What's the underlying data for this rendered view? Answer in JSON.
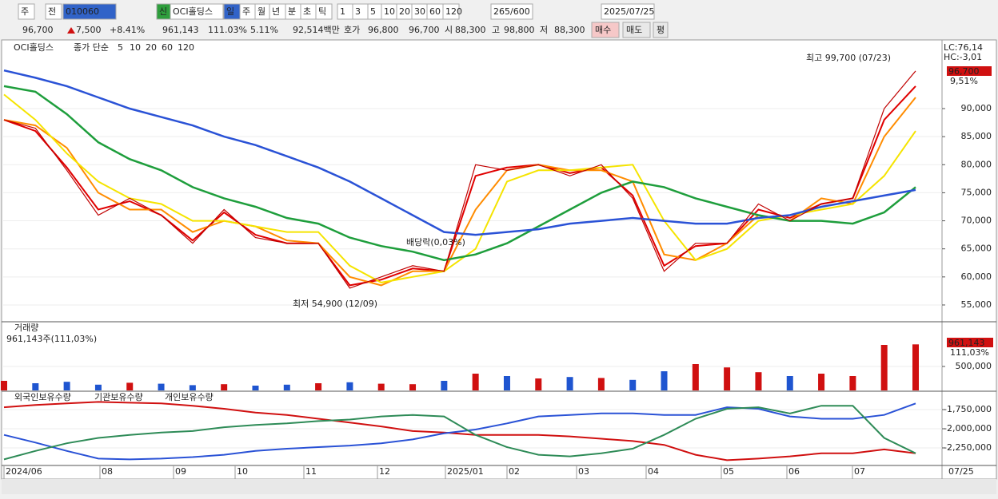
{
  "toolbar": {
    "items": [
      "주",
      "전",
      "010060",
      "신",
      "OCI홀딩스",
      "일",
      "주",
      "월",
      "년",
      "분",
      "초",
      "틱",
      "1",
      "3",
      "5",
      "10",
      "20",
      "30",
      "60",
      "120",
      "265/600",
      "2025/07/25"
    ]
  },
  "info_bar": {
    "items": [
      "96,700",
      "7,500",
      "+8.41%",
      "961,143",
      "111.03%",
      "5.11%",
      "92,514백만",
      "호가",
      "96,800",
      "96,700",
      "시",
      "88,300",
      "고",
      "98,800",
      "저",
      "88,300",
      "매수",
      "매도",
      "평"
    ]
  },
  "x_axis": {
    "labels": [
      "2024/06",
      "08",
      "09",
      "10",
      "11",
      "12",
      "2025/01",
      "02",
      "03",
      "04",
      "05",
      "06",
      "07"
    ],
    "end_label": "07/25"
  },
  "chart_data": [
    {
      "type": "line",
      "title": "OCI홀딩스",
      "legend_label": "종가 단순",
      "values": [
        88000,
        86500,
        79000,
        71000,
        74000,
        71000,
        66000,
        72000,
        67000,
        66000,
        66000,
        58000,
        60000,
        62000,
        61000,
        80000,
        79000,
        80000,
        78000,
        80000,
        74000,
        61000,
        66000,
        66000,
        73000,
        70000,
        73000,
        74000,
        90000,
        96700
      ],
      "color": "#c00000",
      "series": [
        {
          "name": "5",
          "color": "#e00000",
          "values": [
            88000,
            86000,
            79500,
            72000,
            73500,
            71000,
            66500,
            71500,
            67500,
            66000,
            66000,
            58500,
            59500,
            61500,
            61000,
            78000,
            79500,
            80000,
            78500,
            79500,
            74500,
            62000,
            65500,
            66000,
            72000,
            70500,
            73000,
            74000,
            88000,
            94000
          ]
        },
        {
          "name": "10",
          "color": "#ff8c00",
          "values": [
            88000,
            87000,
            83000,
            75000,
            72000,
            72000,
            68000,
            70000,
            69000,
            66500,
            66000,
            60000,
            58500,
            61000,
            61000,
            72000,
            79000,
            80000,
            79000,
            79000,
            77000,
            64000,
            63000,
            66000,
            71000,
            70000,
            74000,
            73000,
            85000,
            92000
          ]
        },
        {
          "name": "20",
          "color": "#f5e400",
          "values": [
            92500,
            88000,
            82000,
            77000,
            74000,
            73000,
            70000,
            70000,
            69000,
            68000,
            68000,
            62000,
            59000,
            60000,
            61000,
            65000,
            77000,
            79000,
            79000,
            79500,
            80000,
            70000,
            63000,
            65000,
            70000,
            71000,
            72000,
            73000,
            78000,
            86000
          ]
        },
        {
          "name": "60",
          "color": "#1e9e3c",
          "values": [
            94000,
            93000,
            89000,
            84000,
            81000,
            79000,
            76000,
            74000,
            72500,
            70500,
            69500,
            67000,
            65500,
            64500,
            63000,
            64000,
            66000,
            69000,
            72000,
            75000,
            77000,
            76000,
            74000,
            72500,
            71000,
            70000,
            70000,
            69500,
            71500,
            76000
          ]
        },
        {
          "name": "120",
          "color": "#2a52d6",
          "values": [
            96800,
            95500,
            94000,
            92000,
            90000,
            88500,
            87000,
            85000,
            83500,
            81500,
            79500,
            77000,
            74000,
            71000,
            68000,
            67500,
            68000,
            68500,
            69500,
            70000,
            70500,
            70000,
            69500,
            69500,
            70500,
            71000,
            72500,
            73500,
            74500,
            75500
          ]
        }
      ],
      "ylim": [
        52150,
        99820
      ],
      "yticks": [
        {
          "value": 55000,
          "label": "55,000"
        },
        {
          "value": 60000,
          "label": "60,000"
        },
        {
          "value": 65000,
          "label": "65,000"
        },
        {
          "value": 70000,
          "label": "70,000"
        },
        {
          "value": 75000,
          "label": "75,000"
        },
        {
          "value": 80000,
          "label": "80,000"
        },
        {
          "value": 85000,
          "label": "85,000"
        },
        {
          "value": 90000,
          "label": "90,000"
        }
      ],
      "annotations": [
        "최고 99,700 (07/23)",
        "최저 54,900 (12/09)",
        "배당락(0,03%)"
      ],
      "side_labels": [
        "LC:76,14",
        "HC:-3,01",
        "96,700",
        "9,51%"
      ]
    },
    {
      "type": "bar",
      "title": "거래량",
      "subtitle": "961,143주(111,03%)",
      "values": [
        200000,
        150000,
        180000,
        120000,
        160000,
        140000,
        110000,
        130000,
        100000,
        120000,
        150000,
        170000,
        140000,
        130000,
        200000,
        350000,
        300000,
        250000,
        280000,
        260000,
        220000,
        400000,
        550000,
        480000,
        380000,
        300000,
        350000,
        300000,
        950000,
        961143
      ],
      "up_color": "#d01010",
      "down_color": "#1f55d0",
      "ylim": [
        0,
        1400000
      ],
      "yticks": [
        {
          "value": 500000,
          "label": "500,000"
        }
      ],
      "side_labels": [
        "961,143",
        "111,03%"
      ]
    },
    {
      "type": "line",
      "series": [
        {
          "name": "외국인보유수량",
          "color": "#d01010",
          "values": [
            -1720000,
            -1690000,
            -1670000,
            -1650000,
            -1660000,
            -1670000,
            -1700000,
            -1740000,
            -1790000,
            -1820000,
            -1870000,
            -1920000,
            -1970000,
            -2030000,
            -2050000,
            -2080000,
            -2080000,
            -2080000,
            -2100000,
            -2130000,
            -2160000,
            -2210000,
            -2340000,
            -2410000,
            -2390000,
            -2360000,
            -2320000,
            -2320000,
            -2270000,
            -2320000
          ]
        },
        {
          "name": "기관보유수량",
          "color": "#2a52d6",
          "values": [
            -2080000,
            -2180000,
            -2290000,
            -2390000,
            -2400000,
            -2390000,
            -2370000,
            -2340000,
            -2290000,
            -2260000,
            -2240000,
            -2220000,
            -2190000,
            -2140000,
            -2060000,
            -2010000,
            -1930000,
            -1840000,
            -1820000,
            -1800000,
            -1800000,
            -1820000,
            -1820000,
            -1720000,
            -1740000,
            -1840000,
            -1870000,
            -1870000,
            -1820000,
            -1670000
          ]
        },
        {
          "name": "개인보유수량",
          "color": "#2e8b57",
          "values": [
            -2400000,
            -2290000,
            -2190000,
            -2120000,
            -2080000,
            -2050000,
            -2030000,
            -1980000,
            -1950000,
            -1930000,
            -1900000,
            -1880000,
            -1840000,
            -1820000,
            -1840000,
            -2080000,
            -2240000,
            -2340000,
            -2360000,
            -2320000,
            -2260000,
            -2080000,
            -1870000,
            -1740000,
            -1720000,
            -1800000,
            -1700000,
            -1700000,
            -2120000,
            -2320000
          ]
        }
      ],
      "ylim": [
        -2468750,
        -1531250
      ],
      "yticks": [
        {
          "value": -1750000,
          "label": "-1,750,000"
        },
        {
          "value": -2000000,
          "label": "-2,000,000"
        },
        {
          "value": -2250000,
          "label": "-2,250,000"
        }
      ]
    }
  ]
}
